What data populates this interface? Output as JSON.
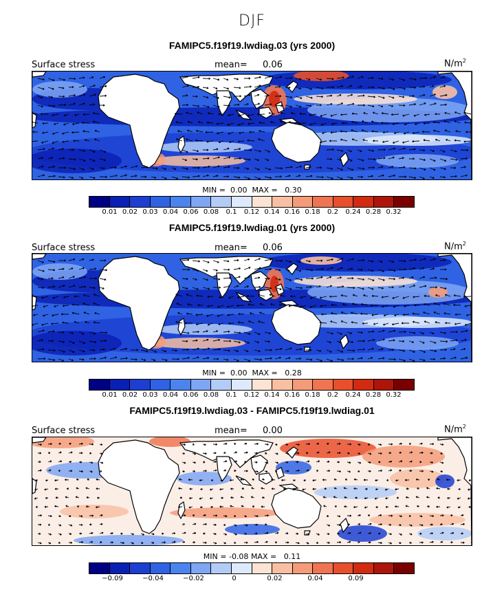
{
  "season": "DJF",
  "units_base": "N/m",
  "units_exp": "2",
  "field_label": "Surface stress",
  "panels": [
    {
      "title": "FAMIPC5.f19f19.lwdiag.03 (yrs 2000)",
      "mean_label": "mean=",
      "mean": "0.06",
      "min_label": "MIN =",
      "min": "0.00",
      "max_label": "MAX =",
      "max": "0.30"
    },
    {
      "title": "FAMIPC5.f19f19.lwdiag.01 (yrs 2000)",
      "mean_label": "mean=",
      "mean": "0.06",
      "min_label": "MIN =",
      "min": "0.00",
      "max_label": "MAX =",
      "max": "0.28"
    },
    {
      "title": "FAMIPC5.f19f19.lwdiag.03 - FAMIPC5.f19f19.lwdiag.01",
      "mean_label": "mean=",
      "mean": "0.00",
      "min_label": "MIN =",
      "min": "-0.08",
      "max_label": "MAX =",
      "max": "0.11"
    }
  ],
  "chart_data": [
    {
      "type": "heatmap",
      "title": "FAMIPC5.f19f19.lwdiag.03 (yrs 2000)",
      "variable": "Surface stress",
      "units": "N/m2",
      "mean": 0.06,
      "min": 0.0,
      "max": 0.3,
      "colorbar_levels": [
        0.01,
        0.02,
        0.03,
        0.04,
        0.06,
        0.08,
        0.1,
        0.12,
        0.14,
        0.16,
        0.18,
        0.2,
        0.24,
        0.28,
        0.32
      ],
      "colorbar_tick_labels": [
        "0.01",
        "0.02",
        "0.03",
        "0.04",
        "0.06",
        "0.08",
        "0.1",
        "0.12",
        "0.14",
        "0.16",
        "0.18",
        "0.2",
        "0.24",
        "0.28",
        "0.32"
      ],
      "colors": [
        "#000084",
        "#0a20b4",
        "#1c3fd2",
        "#2f63e4",
        "#4c84ef",
        "#7ea6f3",
        "#b3ccf7",
        "#deeafb",
        "#fde3d3",
        "#f8bfa2",
        "#f49c79",
        "#ef7552",
        "#e84f2c",
        "#d32a12",
        "#ad150a",
        "#7a0000"
      ]
    },
    {
      "type": "heatmap",
      "title": "FAMIPC5.f19f19.lwdiag.01 (yrs 2000)",
      "variable": "Surface stress",
      "units": "N/m2",
      "mean": 0.06,
      "min": 0.0,
      "max": 0.28,
      "colorbar_levels": [
        0.01,
        0.02,
        0.03,
        0.04,
        0.06,
        0.08,
        0.1,
        0.12,
        0.14,
        0.16,
        0.18,
        0.2,
        0.24,
        0.28,
        0.32
      ],
      "colorbar_tick_labels": [
        "0.01",
        "0.02",
        "0.03",
        "0.04",
        "0.06",
        "0.08",
        "0.1",
        "0.12",
        "0.14",
        "0.16",
        "0.18",
        "0.2",
        "0.24",
        "0.28",
        "0.32"
      ],
      "colors": [
        "#000084",
        "#0a20b4",
        "#1c3fd2",
        "#2f63e4",
        "#4c84ef",
        "#7ea6f3",
        "#b3ccf7",
        "#deeafb",
        "#fde3d3",
        "#f8bfa2",
        "#f49c79",
        "#ef7552",
        "#e84f2c",
        "#d32a12",
        "#ad150a",
        "#7a0000"
      ]
    },
    {
      "type": "heatmap",
      "title": "FAMIPC5.f19f19.lwdiag.03 - FAMIPC5.f19f19.lwdiag.01",
      "variable": "Surface stress",
      "units": "N/m2",
      "mean": 0.0,
      "min": -0.08,
      "max": 0.11,
      "colorbar_levels": [
        -0.09,
        -0.06,
        -0.04,
        -0.03,
        -0.02,
        -0.01,
        0,
        0.01,
        0.02,
        0.03,
        0.04,
        0.06,
        0.09,
        0.12,
        0.15
      ],
      "colorbar_tick_labels": [
        "−0.09",
        "−0.04",
        "−0.02",
        "0",
        "0.02",
        "0.04",
        "0.09"
      ],
      "colors": [
        "#000084",
        "#0a20b4",
        "#1c3fd2",
        "#2f63e4",
        "#4c84ef",
        "#7ea6f3",
        "#b3ccf7",
        "#deeafb",
        "#fde3d3",
        "#f8bfa2",
        "#f49c79",
        "#ef7552",
        "#e84f2c",
        "#d32a12",
        "#ad150a",
        "#7a0000"
      ]
    }
  ]
}
